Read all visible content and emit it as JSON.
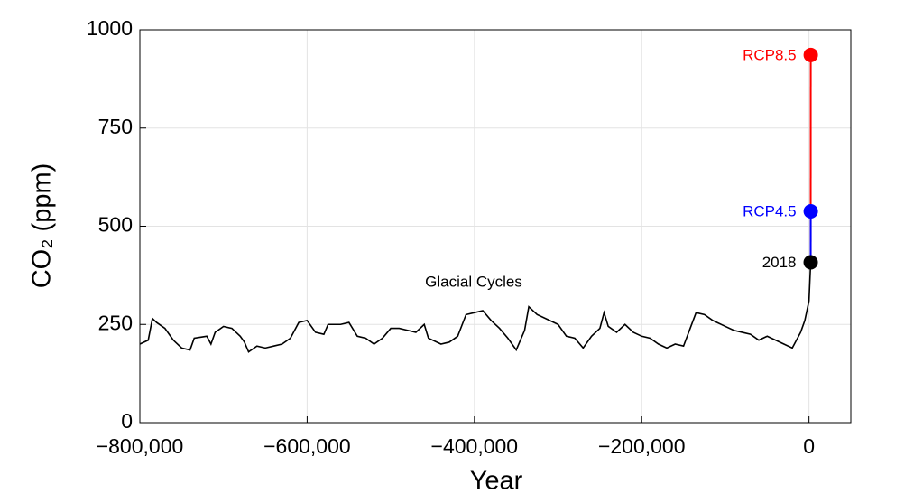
{
  "chart_data": {
    "type": "line",
    "xlabel": "Year",
    "ylabel": "CO₂ (ppm)",
    "xlim": [
      -800000,
      50000
    ],
    "ylim": [
      0,
      1000
    ],
    "xticks": [
      {
        "value": -800000,
        "label": "−800,000"
      },
      {
        "value": -600000,
        "label": "−600,000"
      },
      {
        "value": -400000,
        "label": "−400,000"
      },
      {
        "value": -200000,
        "label": "−200,000"
      },
      0
    ],
    "yticks": [
      0,
      250,
      500,
      750,
      1000
    ],
    "grid": true,
    "series": [
      {
        "name": "Glacial Cycles",
        "color": "#000000",
        "x": [
          -800000,
          -790000,
          -785000,
          -780000,
          -770000,
          -760000,
          -750000,
          -740000,
          -735000,
          -720000,
          -715000,
          -710000,
          -700000,
          -690000,
          -680000,
          -675000,
          -670000,
          -660000,
          -650000,
          -640000,
          -630000,
          -620000,
          -610000,
          -600000,
          -590000,
          -580000,
          -575000,
          -560000,
          -550000,
          -540000,
          -530000,
          -520000,
          -510000,
          -500000,
          -490000,
          -480000,
          -470000,
          -460000,
          -455000,
          -440000,
          -430000,
          -420000,
          -410000,
          -400000,
          -390000,
          -380000,
          -370000,
          -360000,
          -350000,
          -340000,
          -335000,
          -325000,
          -310000,
          -300000,
          -290000,
          -280000,
          -270000,
          -260000,
          -250000,
          -245000,
          -240000,
          -230000,
          -220000,
          -210000,
          -200000,
          -190000,
          -180000,
          -170000,
          -160000,
          -150000,
          -135000,
          -125000,
          -115000,
          -100000,
          -90000,
          -80000,
          -70000,
          -60000,
          -50000,
          -40000,
          -30000,
          -20000,
          -10000,
          -5000,
          0,
          2018
        ],
        "values": [
          200,
          210,
          265,
          255,
          240,
          210,
          190,
          185,
          215,
          220,
          200,
          230,
          245,
          240,
          220,
          205,
          180,
          195,
          190,
          195,
          200,
          215,
          255,
          260,
          230,
          225,
          250,
          250,
          255,
          220,
          215,
          200,
          215,
          240,
          240,
          235,
          230,
          250,
          215,
          200,
          205,
          220,
          275,
          280,
          285,
          260,
          240,
          215,
          185,
          235,
          295,
          275,
          260,
          250,
          220,
          215,
          190,
          220,
          240,
          280,
          245,
          230,
          250,
          230,
          220,
          215,
          200,
          190,
          200,
          195,
          280,
          275,
          260,
          245,
          235,
          230,
          225,
          210,
          220,
          210,
          200,
          190,
          230,
          260,
          310,
          408
        ]
      },
      {
        "name": "RCP8.5",
        "color": "#ff0000",
        "x": [
          2018,
          2100
        ],
        "values": [
          408,
          936
        ]
      },
      {
        "name": "RCP4.5",
        "color": "#0000ff",
        "x": [
          2018,
          2100
        ],
        "values": [
          408,
          538
        ]
      },
      {
        "name": "2018",
        "color": "#000000",
        "x": [
          2018
        ],
        "values": [
          408
        ]
      }
    ]
  }
}
